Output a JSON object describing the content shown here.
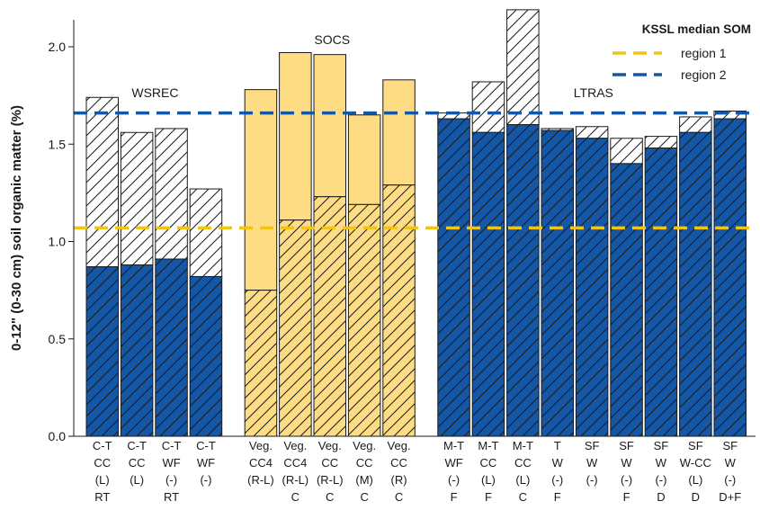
{
  "chart_data": {
    "type": "bar",
    "ylabel": "0-12\" (0-30 cm) soil organic matter (%)",
    "ylim": [
      0,
      2.2
    ],
    "yticks": [
      "0.0",
      "0.5",
      "1.0",
      "1.5",
      "2.0"
    ],
    "ytick_values": [
      0,
      0.5,
      1.0,
      1.5,
      2.0
    ],
    "grid": false,
    "colors": {
      "region1": "#f0c419",
      "region2": "#1357a6",
      "socs_fill": "#fddc84",
      "edge": "#1a1a1a"
    },
    "legend": {
      "title": "KSSL median SOM",
      "placement": "top-right",
      "entries": [
        {
          "label": "region 1",
          "value": 1.07,
          "color": "#f0c419"
        },
        {
          "label": "region 2",
          "value": 1.66,
          "color": "#1357a6"
        }
      ]
    },
    "groups": [
      {
        "name": "WSREC",
        "region": 2,
        "bars": [
          {
            "label": [
              "C-T",
              "CC",
              "(L)",
              "RT"
            ],
            "lower": 0.87,
            "total": 1.74
          },
          {
            "label": [
              "C-T",
              "CC",
              "(L)"
            ],
            "lower": 0.88,
            "total": 1.56
          },
          {
            "label": [
              "C-T",
              "WF",
              "(-)",
              "RT"
            ],
            "lower": 0.91,
            "total": 1.58
          },
          {
            "label": [
              "C-T",
              "WF",
              "(-)"
            ],
            "lower": 0.82,
            "total": 1.27
          }
        ]
      },
      {
        "name": "SOCS",
        "region": 1,
        "bars": [
          {
            "label": [
              "Veg.",
              "CC4",
              "(R-L)"
            ],
            "lower": 0.75,
            "total": 1.78
          },
          {
            "label": [
              "Veg.",
              "CC4",
              "(R-L)",
              "C"
            ],
            "lower": 1.11,
            "total": 1.97
          },
          {
            "label": [
              "Veg.",
              "CC",
              "(R-L)",
              "C"
            ],
            "lower": 1.23,
            "total": 1.96
          },
          {
            "label": [
              "Veg.",
              "CC",
              "(M)",
              "C"
            ],
            "lower": 1.19,
            "total": 1.65
          },
          {
            "label": [
              "Veg.",
              "CC",
              "(R)",
              "C"
            ],
            "lower": 1.29,
            "total": 1.83
          }
        ]
      },
      {
        "name": "LTRAS",
        "region": 2,
        "bars": [
          {
            "label": [
              "M-T",
              "WF",
              "(-)",
              "F"
            ],
            "lower": 1.63,
            "total": 1.66
          },
          {
            "label": [
              "M-T",
              "CC",
              "(L)",
              "F"
            ],
            "lower": 1.56,
            "total": 1.82
          },
          {
            "label": [
              "M-T",
              "CC",
              "(L)",
              "C"
            ],
            "lower": 1.6,
            "total": 2.19
          },
          {
            "label": [
              "T",
              "W",
              "(-)",
              "F"
            ],
            "lower": 1.57,
            "total": 1.58
          },
          {
            "label": [
              "SF",
              "W",
              "(-)"
            ],
            "lower": 1.53,
            "total": 1.59
          },
          {
            "label": [
              "SF",
              "W",
              "(-)",
              "F"
            ],
            "lower": 1.4,
            "total": 1.53
          },
          {
            "label": [
              "SF",
              "W",
              "(-)",
              "D"
            ],
            "lower": 1.48,
            "total": 1.54
          },
          {
            "label": [
              "SF",
              "W-CC",
              "(L)",
              "D"
            ],
            "lower": 1.56,
            "total": 1.64
          },
          {
            "label": [
              "SF",
              "W",
              "(-)",
              "D+F"
            ],
            "lower": 1.63,
            "total": 1.67
          }
        ]
      }
    ]
  }
}
